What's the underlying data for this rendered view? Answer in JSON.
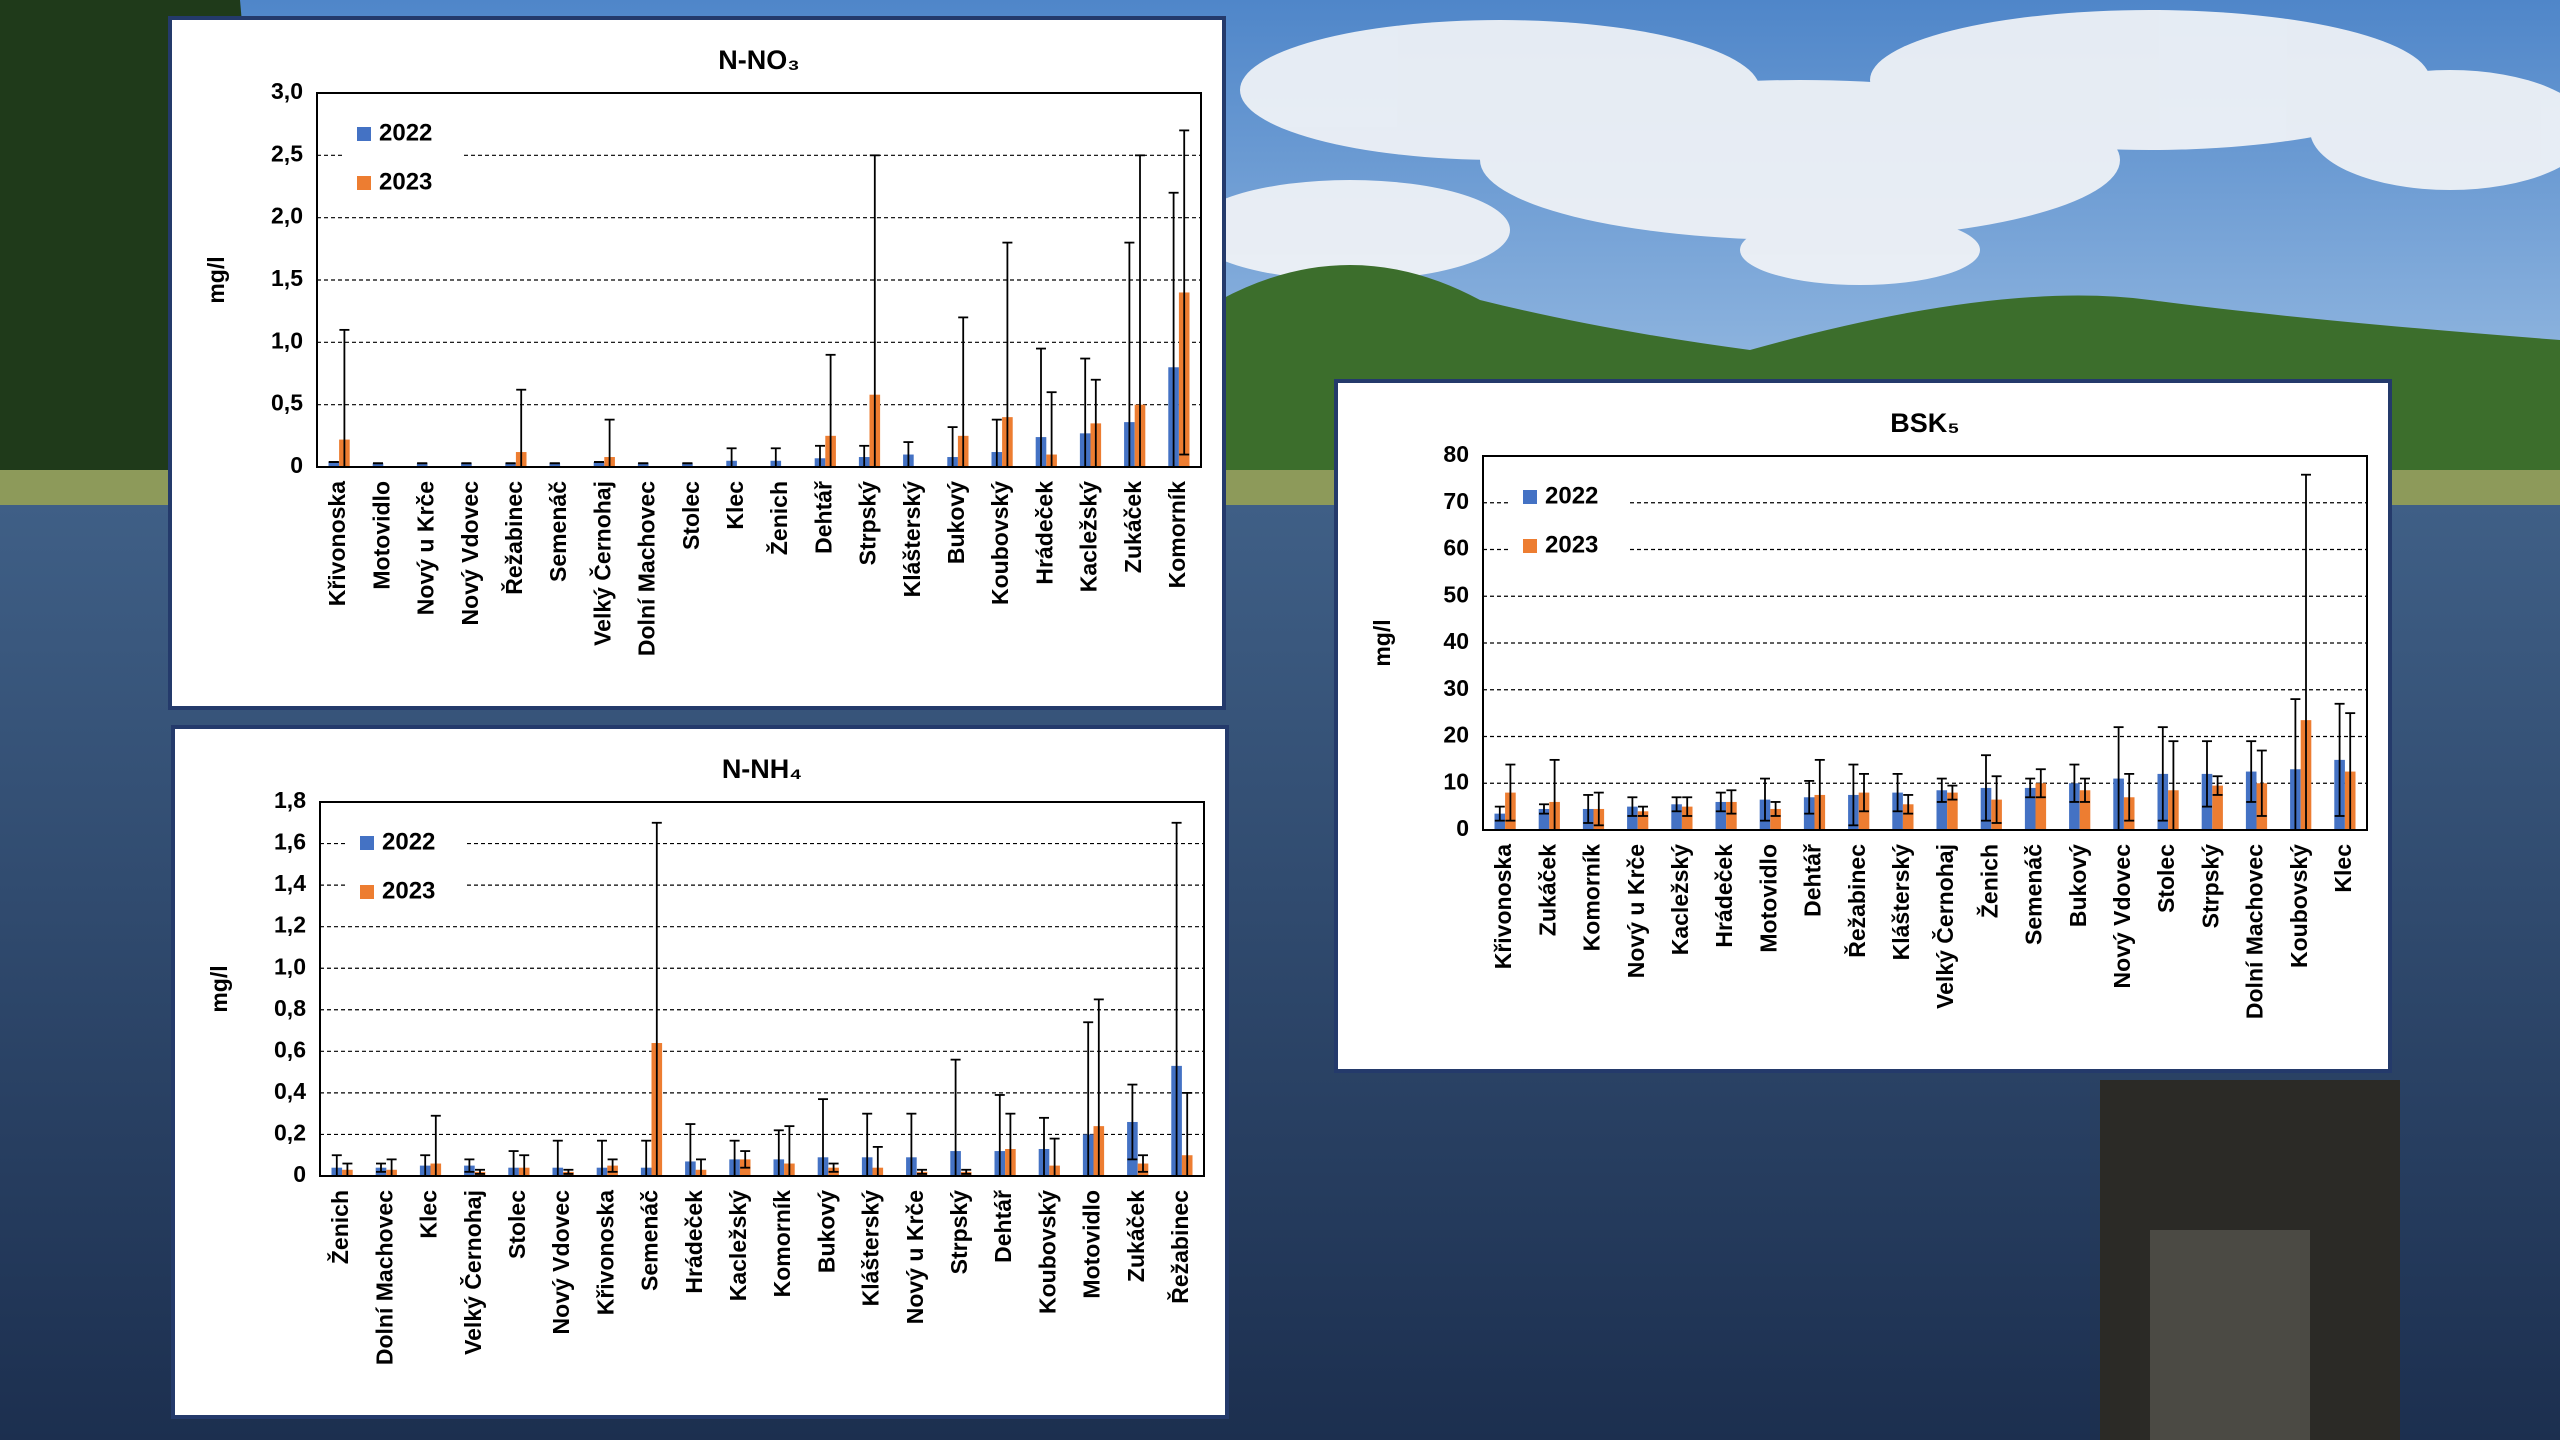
{
  "chart_data": [
    {
      "type": "bar",
      "title": "N-NO₃",
      "y_label": "mg/l",
      "categories": [
        "Křivonoska",
        "Motovidlo",
        "Nový u Krče",
        "Nový Vdovec",
        "Řežabinec",
        "Semenáč",
        "Velký Černohaj",
        "Dolní Machovec",
        "Stolec",
        "Klec",
        "Ženich",
        "Dehtář",
        "Strpský",
        "Klášterský",
        "Bukový",
        "Koubovský",
        "Hrádeček",
        "Kacležský",
        "Zukáček",
        "Komorník"
      ],
      "series": [
        {
          "name": "2022",
          "color": "#4472c4",
          "values": [
            0.04,
            0.03,
            0.03,
            0.03,
            0.03,
            0.03,
            0.04,
            0.03,
            0.03,
            0.05,
            0.05,
            0.07,
            0.08,
            0.1,
            0.08,
            0.12,
            0.24,
            0.27,
            0.36,
            0.8
          ],
          "errors": [
            0,
            0,
            0,
            0,
            0,
            0,
            0,
            0,
            0,
            0.1,
            0.1,
            0.1,
            0.09,
            0.1,
            0.24,
            0.26,
            0.71,
            0.6,
            1.44,
            1.4
          ]
        },
        {
          "name": "2023",
          "color": "#ed7d31",
          "values": [
            0.22,
            0,
            0,
            0,
            0.12,
            0,
            0.08,
            0,
            0,
            0,
            0,
            0.25,
            0.58,
            0,
            0.25,
            0.4,
            0.1,
            0.35,
            0.5,
            1.4
          ],
          "errors": [
            0.88,
            0,
            0,
            0,
            0.5,
            0,
            0.3,
            0,
            0,
            0,
            0,
            0.65,
            1.92,
            0,
            0.95,
            1.4,
            0.5,
            0.35,
            2.0,
            1.3
          ]
        }
      ],
      "ylim": [
        0,
        3
      ],
      "yticks": [
        0,
        {
          "value": 0.5,
          "label": "0,5"
        },
        {
          "value": 1,
          "label": "1,0"
        },
        {
          "value": 1.5,
          "label": "1,5"
        },
        {
          "value": 2,
          "label": "2,0"
        },
        {
          "value": 2.5,
          "label": "2,5"
        },
        {
          "value": 3,
          "label": "3,0"
        }
      ],
      "grid": true,
      "legend": "upper-left"
    },
    {
      "type": "bar",
      "title": "N-NH₄",
      "y_label": "mg/l",
      "categories": [
        "Ženich",
        "Dolní Machovec",
        "Klec",
        "Velký Černohaj",
        "Stolec",
        "Nový Vdovec",
        "Křivonoska",
        "Semenáč",
        "Hrádeček",
        "Kacležský",
        "Komorník",
        "Bukový",
        "Klášterský",
        "Nový u Krče",
        "Strpský",
        "Dehtář",
        "Koubovský",
        "Motovidlo",
        "Zukáček",
        "Řežabinec"
      ],
      "series": [
        {
          "name": "2022",
          "color": "#4472c4",
          "values": [
            0.04,
            0.04,
            0.05,
            0.05,
            0.04,
            0.04,
            0.04,
            0.04,
            0.07,
            0.08,
            0.08,
            0.09,
            0.09,
            0.09,
            0.12,
            0.12,
            0.13,
            0.2,
            0.26,
            0.53
          ],
          "errors": [
            0.06,
            0.02,
            0.05,
            0.03,
            0.08,
            0.13,
            0.13,
            0.13,
            0.18,
            0.09,
            0.14,
            0.28,
            0.21,
            0.21,
            0.44,
            0.27,
            0.15,
            0.54,
            0.18,
            1.17
          ]
        },
        {
          "name": "2023",
          "color": "#ed7d31",
          "values": [
            0.03,
            0.03,
            0.06,
            0.02,
            0.04,
            0.02,
            0.05,
            0.64,
            0.03,
            0.08,
            0.06,
            0.04,
            0.04,
            0.02,
            0.02,
            0.13,
            0.05,
            0.24,
            0.06,
            0.1
          ],
          "errors": [
            0.03,
            0.05,
            0.23,
            0.01,
            0.06,
            0.01,
            0.03,
            1.06,
            0.05,
            0.04,
            0.18,
            0.02,
            0.1,
            0.01,
            0.01,
            0.17,
            0.13,
            0.61,
            0.04,
            0.3
          ]
        }
      ],
      "ylim": [
        0,
        1.8
      ],
      "yticks": [
        0,
        {
          "value": 0.2,
          "label": "0,2"
        },
        {
          "value": 0.4,
          "label": "0,4"
        },
        {
          "value": 0.6,
          "label": "0,6"
        },
        {
          "value": 0.8,
          "label": "0,8"
        },
        {
          "value": 1,
          "label": "1,0"
        },
        {
          "value": 1.2,
          "label": "1,2"
        },
        {
          "value": 1.4,
          "label": "1,4"
        },
        {
          "value": 1.6,
          "label": "1,6"
        },
        {
          "value": 1.8,
          "label": "1,8"
        }
      ],
      "grid": true,
      "legend": "upper-left"
    },
    {
      "type": "bar",
      "title": "BSK₅",
      "y_label": "mg/l",
      "categories": [
        "Křivonoska",
        "Zukáček",
        "Komorník",
        "Nový u Krče",
        "Kacležský",
        "Hrádeček",
        "Motovidlo",
        "Dehtář",
        "Řežabinec",
        "Klášterský",
        "Velký Černohaj",
        "Ženich",
        "Semenáč",
        "Bukový",
        "Nový Vdovec",
        "Stolec",
        "Strpský",
        "Dolní Machovec",
        "Koubovský",
        "Klec"
      ],
      "series": [
        {
          "name": "2022",
          "color": "#4472c4",
          "values": [
            3.5,
            4.5,
            4.5,
            5,
            5.5,
            6,
            6.5,
            7,
            7.5,
            8,
            8.5,
            9,
            9,
            10,
            11,
            12,
            12,
            12.5,
            13,
            15
          ],
          "errors": [
            1.5,
            1,
            3,
            2,
            1.5,
            2,
            4.5,
            3.5,
            6.5,
            4,
            2.5,
            7,
            2,
            4,
            11,
            10,
            7,
            6.5,
            15,
            12
          ]
        },
        {
          "name": "2023",
          "color": "#ed7d31",
          "values": [
            8,
            6,
            4.5,
            4,
            5,
            6,
            4.5,
            7.5,
            8,
            5.5,
            8,
            6.5,
            10,
            8.5,
            7,
            8.5,
            9.5,
            10,
            23.5,
            12.5
          ],
          "errors": [
            6,
            9,
            3.5,
            1,
            2,
            2.5,
            1.5,
            7.5,
            4,
            2,
            1.5,
            5,
            3,
            2.5,
            5,
            10.5,
            2,
            7,
            52.5,
            12.5
          ]
        }
      ],
      "ylim": [
        0,
        80
      ],
      "yticks": [
        0,
        10,
        20,
        30,
        40,
        50,
        60,
        70,
        80
      ],
      "grid": true,
      "legend": "upper-left"
    }
  ]
}
